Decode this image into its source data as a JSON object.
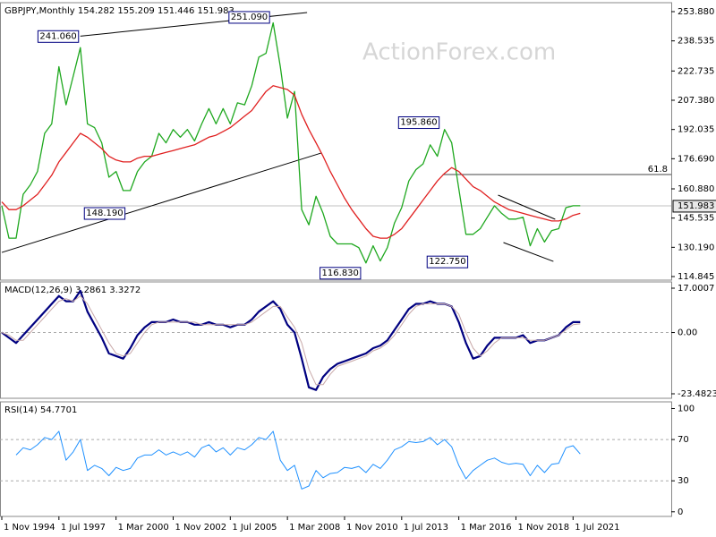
{
  "chart_data": [
    {
      "type": "line",
      "title": "GBPJPY,Monthly  154.282 155.209 151.446 151.983",
      "watermark": "ActionForex.com",
      "x": [
        "1 Nov 1994",
        "1 Mar 1995",
        "1 Jul 1995",
        "1 Nov 1995",
        "1 Mar 1996",
        "1 Jul 1996",
        "1 Nov 1996",
        "1 Mar 1997",
        "1 Jul 1997",
        "1 Nov 1997",
        "1 Mar 1998",
        "1 Jul 1998",
        "1 Nov 1998",
        "1 Mar 1999",
        "1 Jul 1999",
        "1 Nov 1999",
        "1 Mar 2000",
        "1 Jul 2000",
        "1 Nov 2000",
        "1 Mar 2001",
        "1 Jul 2001",
        "1 Nov 2001",
        "1 Mar 2002",
        "1 Jul 2002",
        "1 Nov 2002",
        "1 Mar 2003",
        "1 Jul 2003",
        "1 Nov 2003",
        "1 Mar 2004",
        "1 Jul 2004",
        "1 Nov 2004",
        "1 Mar 2005",
        "1 Jul 2005",
        "1 Nov 2005",
        "1 Mar 2006",
        "1 Jul 2006",
        "1 Nov 2006",
        "1 Mar 2007",
        "1 Jul 2007",
        "1 Nov 2007",
        "1 Mar 2008",
        "1 Jul 2008",
        "1 Nov 2008",
        "1 Mar 2009",
        "1 Jul 2009",
        "1 Nov 2009",
        "1 Mar 2010",
        "1 Jul 2010",
        "1 Nov 2010",
        "1 Mar 2011",
        "1 Jul 2011",
        "1 Nov 2011",
        "1 Mar 2012",
        "1 Jul 2012",
        "1 Nov 2012",
        "1 Mar 2013",
        "1 Jul 2013",
        "1 Nov 2013",
        "1 Mar 2014",
        "1 Jul 2014",
        "1 Nov 2014",
        "1 Mar 2015",
        "1 Jul 2015",
        "1 Nov 2015",
        "1 Mar 2016",
        "1 Jul 2016",
        "1 Nov 2016",
        "1 Mar 2017",
        "1 Jul 2017",
        "1 Nov 2017",
        "1 Mar 2018",
        "1 Jul 2018",
        "1 Nov 2018",
        "1 Mar 2019",
        "1 Jul 2019",
        "1 Nov 2019",
        "1 Mar 2020",
        "1 Jul 2020",
        "1 Nov 2020",
        "1 Mar 2021",
        "1 Jul 2021",
        "1 Nov 2021"
      ],
      "xlim": [
        "1 Oct 1994",
        "1 Feb 2026"
      ],
      "xticks": [
        "1 Nov 1994",
        "1 Jul 1997",
        "1 Mar 2000",
        "1 Nov 2002",
        "1 Jul 2005",
        "1 Mar 2008",
        "1 Nov 2010",
        "1 Jul 2013",
        "1 Mar 2016",
        "1 Nov 2018",
        "1 Jul 2021"
      ],
      "series": [
        {
          "color": "#1fa81f",
          "values": [
            152,
            135,
            135,
            158,
            163,
            170,
            190,
            195,
            225,
            205,
            220,
            235,
            195,
            193,
            185,
            167,
            170,
            160,
            160,
            170,
            175,
            178,
            190,
            185,
            192,
            188,
            192,
            186,
            195,
            203,
            195,
            203,
            195,
            206,
            205,
            215,
            230,
            232,
            248,
            225,
            198,
            212,
            150,
            142,
            157,
            148,
            136,
            132,
            132,
            132,
            130,
            122,
            131,
            123,
            130,
            143,
            151,
            165,
            171,
            174,
            184,
            178,
            192,
            185,
            161,
            137,
            137,
            140,
            146,
            152,
            148,
            145,
            145,
            146,
            131,
            140,
            133,
            139,
            140,
            151,
            152,
            152
          ]
        },
        {
          "color": "#e02020",
          "values": [
            154,
            150,
            150,
            152,
            155,
            158,
            163,
            168,
            175,
            180,
            185,
            190,
            188,
            185,
            182,
            178,
            176,
            175,
            175,
            177,
            178,
            178,
            179,
            180,
            181,
            182,
            183,
            184,
            186,
            188,
            189,
            191,
            193,
            196,
            199,
            202,
            207,
            212,
            215,
            214,
            213,
            210,
            200,
            192,
            185,
            178,
            170,
            163,
            156,
            150,
            145,
            140,
            136,
            135,
            135,
            137,
            140,
            145,
            150,
            155,
            160,
            165,
            169,
            172,
            170,
            166,
            162,
            160,
            157,
            154,
            152,
            150,
            149,
            148,
            147,
            146,
            145,
            144,
            144,
            145,
            147,
            148
          ]
        }
      ],
      "ylim": [
        112.97,
        258.58
      ],
      "yticks": [
        {
          "value": 253.88,
          "label": "253.880"
        },
        238.535,
        222.735,
        {
          "value": 207.38,
          "label": "207.380"
        },
        192.035,
        {
          "value": 176.69,
          "label": "176.690"
        },
        {
          "value": 160.88,
          "label": "160.880"
        },
        145.535,
        {
          "value": 130.19,
          "label": "130.190"
        },
        114.845
      ],
      "last_price": 151.983,
      "annotations": [
        {
          "x": "1 Aug 1998",
          "value": 241.06,
          "label": "241.060"
        },
        {
          "x": "1 Jul 2007",
          "value": 251.09,
          "label": "251.090"
        },
        {
          "x": "1 Oct 2000",
          "value": 148.19,
          "label": "148.190"
        },
        {
          "x": "1 Oct 2011",
          "value": 116.83,
          "label": "116.830"
        },
        {
          "x": "1 Jun 2015",
          "value": 195.86,
          "label": "195.860"
        },
        {
          "x": "1 Oct 2016",
          "value": 122.75,
          "label": "122.750"
        }
      ],
      "trendlines": [
        {
          "x": [
            "1 Jul 1998",
            "1 Feb 2009"
          ],
          "y": [
            241,
            253.4
          ]
        },
        {
          "x": [
            "1 Nov 1994",
            "1 Oct 2009"
          ],
          "y": [
            127.5,
            179.7
          ]
        },
        {
          "x": [
            "1 Jan 2018",
            "1 Sep 2020"
          ],
          "y": [
            157.6,
            144.9
          ]
        },
        {
          "x": [
            "1 Apr 2018",
            "1 Aug 2020"
          ],
          "y": [
            132.7,
            122.8
          ]
        }
      ],
      "fib": {
        "x": "1 Jun 2015",
        "value": 168.4,
        "label": "61.8"
      }
    },
    {
      "type": "line",
      "title": "MACD(12,26,9) 3.2861 3.3272",
      "series": [
        {
          "color": "#000080",
          "width": 2.2,
          "values": [
            0,
            -2,
            -4,
            -1,
            2,
            5,
            8,
            11,
            14,
            12,
            12,
            16,
            8,
            3,
            -2,
            -8,
            -9,
            -10,
            -6,
            -1,
            2,
            4,
            4,
            4,
            5,
            4,
            4,
            3,
            3,
            4,
            3,
            3,
            2,
            3,
            3,
            5,
            8,
            10,
            12,
            9,
            3,
            0,
            -10,
            -21,
            -22,
            -17,
            -14,
            -12,
            -11,
            -10,
            -9,
            -8,
            -6,
            -5,
            -3,
            1,
            5,
            9,
            11,
            11,
            12,
            11,
            11,
            10,
            4,
            -4,
            -10,
            -9,
            -5,
            -2,
            -2,
            -2,
            -2,
            -1,
            -4,
            -3,
            -3,
            -2,
            -1,
            2,
            4,
            4
          ]
        },
        {
          "color": "#c8a8a8",
          "width": 1,
          "values": [
            0,
            -1,
            -3,
            -3,
            0,
            3,
            6,
            9,
            12,
            13,
            12,
            14,
            11,
            6,
            1,
            -4,
            -8,
            -9,
            -8,
            -4,
            0,
            3,
            4,
            4,
            4,
            4,
            4,
            4,
            3,
            3,
            3,
            3,
            3,
            3,
            3,
            4,
            6,
            8,
            10,
            10,
            6,
            2,
            -4,
            -14,
            -20,
            -20,
            -16,
            -13,
            -12,
            -11,
            -10,
            -9,
            -7,
            -6,
            -4,
            -1,
            3,
            7,
            10,
            11,
            11,
            11,
            11,
            10,
            7,
            0,
            -6,
            -9,
            -7,
            -4,
            -2,
            -2,
            -2,
            -2,
            -3,
            -3,
            -3,
            -2,
            -1,
            1,
            3,
            3.3
          ]
        }
      ],
      "ylim": [
        -25.2,
        19.4
      ],
      "yticks": [
        17.0007,
        {
          "value": 0,
          "label": "0.00"
        },
        -23.4823
      ],
      "levels": [
        0
      ]
    },
    {
      "type": "line",
      "title": "RSI(14) 54.7701",
      "series": [
        {
          "color": "#1e90ff",
          "width": 1,
          "values": [
            null,
            null,
            55,
            62,
            60,
            65,
            72,
            70,
            78,
            50,
            58,
            70,
            40,
            45,
            42,
            35,
            43,
            40,
            42,
            52,
            55,
            55,
            60,
            55,
            58,
            55,
            58,
            53,
            62,
            65,
            58,
            62,
            55,
            62,
            60,
            65,
            72,
            70,
            78,
            50,
            40,
            45,
            22,
            25,
            40,
            33,
            37,
            38,
            43,
            42,
            44,
            38,
            46,
            42,
            50,
            60,
            63,
            68,
            67,
            68,
            72,
            65,
            70,
            63,
            45,
            32,
            40,
            45,
            50,
            52,
            48,
            46,
            47,
            46,
            35,
            45,
            38,
            46,
            47,
            62,
            64,
            56
          ]
        }
      ],
      "ylim": [
        -4.5,
        106.5
      ],
      "yticks": [
        100,
        70,
        30,
        0
      ],
      "levels": [
        70,
        30
      ]
    }
  ]
}
